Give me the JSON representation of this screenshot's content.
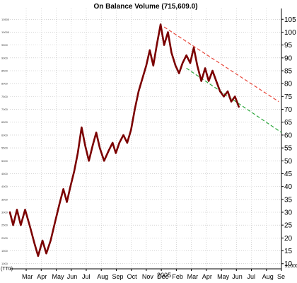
{
  "chart_data": {
    "type": "line",
    "title": "On Balance Volume (715,609.0)",
    "unit_label": "x1000",
    "left_unit_label": "(TT0)",
    "year_label": "2005",
    "x_tick_labels": [
      "Mar",
      "Apr",
      "May",
      "Jun",
      "Jul",
      "Aug",
      "Sep",
      "Oct",
      "Nov",
      "Dec",
      "Feb",
      "Mar",
      "Apr",
      "May",
      "Jun",
      "Jul",
      "Aug",
      "Se"
    ],
    "y_tick_labels": [
      "10",
      "15",
      "20",
      "25",
      "30",
      "35",
      "40",
      "45",
      "50",
      "55",
      "60",
      "65",
      "70",
      "75",
      "80",
      "85",
      "90",
      "95",
      "100",
      "105"
    ],
    "left_tick_labels": [
      "1000",
      "1500",
      "2000",
      "2500",
      "3000",
      "3500",
      "4000",
      "4500",
      "5000",
      "5500",
      "6000",
      "6500",
      "7000",
      "7500",
      "8000",
      "8500",
      "9000",
      "9500",
      "10000",
      "10500"
    ],
    "ylim": [
      8,
      107
    ],
    "xlim": [
      0,
      100
    ],
    "grid": true,
    "series": [
      {
        "color": "#7b0000",
        "points": [
          [
            0,
            30
          ],
          [
            1.2,
            25
          ],
          [
            2.6,
            31
          ],
          [
            4,
            25
          ],
          [
            5.6,
            31
          ],
          [
            7.5,
            24
          ],
          [
            9,
            18
          ],
          [
            10.4,
            13
          ],
          [
            12,
            19
          ],
          [
            13.4,
            14
          ],
          [
            15,
            19
          ],
          [
            16.6,
            26
          ],
          [
            18.2,
            33
          ],
          [
            19.7,
            39
          ],
          [
            21,
            34
          ],
          [
            22.3,
            40
          ],
          [
            23.7,
            46
          ],
          [
            25,
            53
          ],
          [
            26.4,
            63
          ],
          [
            27.7,
            56
          ],
          [
            29.1,
            50
          ],
          [
            30.5,
            56
          ],
          [
            31.8,
            61
          ],
          [
            33.1,
            55
          ],
          [
            34.7,
            50
          ],
          [
            36.4,
            54
          ],
          [
            37.8,
            57
          ],
          [
            39,
            53
          ],
          [
            40.3,
            57
          ],
          [
            41.8,
            60
          ],
          [
            43.2,
            57
          ],
          [
            44.6,
            62
          ],
          [
            46,
            70
          ],
          [
            47.4,
            77
          ],
          [
            48.8,
            82
          ],
          [
            50.2,
            87
          ],
          [
            51.5,
            93
          ],
          [
            52.8,
            87
          ],
          [
            54.1,
            95
          ],
          [
            55.5,
            103
          ],
          [
            56.8,
            95
          ],
          [
            58.2,
            100
          ],
          [
            59.5,
            92
          ],
          [
            61,
            87
          ],
          [
            62.3,
            84
          ],
          [
            63.6,
            88
          ],
          [
            65,
            91
          ],
          [
            66.4,
            88
          ],
          [
            67.7,
            94
          ],
          [
            69,
            87
          ],
          [
            70.5,
            81
          ],
          [
            71.9,
            86
          ],
          [
            73.2,
            81
          ],
          [
            74.6,
            85
          ],
          [
            76,
            81
          ],
          [
            77.4,
            77
          ],
          [
            78.8,
            75
          ],
          [
            80.2,
            77
          ],
          [
            81.5,
            73
          ],
          [
            82.9,
            75
          ],
          [
            84.3,
            71
          ]
        ]
      }
    ],
    "trendlines": [
      {
        "color": "#e8473b",
        "from": [
          56.8,
          102
        ],
        "to": [
          99,
          73
        ]
      },
      {
        "color": "#2aa63a",
        "from": [
          65,
          86
        ],
        "to": [
          100,
          61
        ]
      }
    ]
  }
}
